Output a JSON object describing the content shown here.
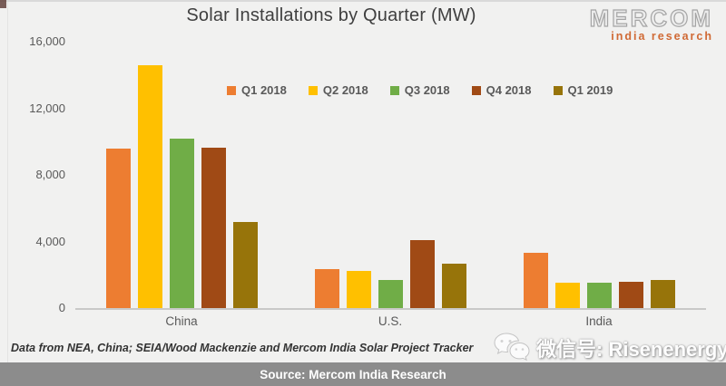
{
  "title": "Solar Installations by Quarter (MW)",
  "logo": {
    "name": "MERCOM",
    "subtitle": "india research"
  },
  "chart_data": {
    "type": "bar",
    "title": "Solar Installations by Quarter (MW)",
    "categories": [
      "China",
      "U.S.",
      "India"
    ],
    "series": [
      {
        "name": "Q1 2018",
        "color": "#ED7D31",
        "values": [
          9650,
          2400,
          3350
        ]
      },
      {
        "name": "Q2 2018",
        "color": "#FFC000",
        "values": [
          14650,
          2300,
          1600
        ]
      },
      {
        "name": "Q3 2018",
        "color": "#70AD47",
        "values": [
          10250,
          1750,
          1600
        ]
      },
      {
        "name": "Q4 2018",
        "color": "#A04A15",
        "values": [
          9700,
          4150,
          1650
        ]
      },
      {
        "name": "Q1 2019",
        "color": "#97740A",
        "values": [
          5200,
          2700,
          1750
        ]
      }
    ],
    "xlabel": "",
    "ylabel": "",
    "ylim": [
      0,
      16000
    ],
    "yticks": [
      16000,
      12000,
      8000,
      4000,
      0
    ],
    "ytick_labels": [
      "16,000",
      "12,000",
      "8,000",
      "4,000",
      "0"
    ],
    "grid": false,
    "legend_position": "top-center"
  },
  "footnote": "Data from NEA, China; SEIA/Wood Mackenzie and Mercom India Solar Project Tracker",
  "footer": {
    "source_label": "Source: Mercom India Research",
    "bg": "#8C8C8C"
  },
  "watermark": {
    "icon": "wechat-icon",
    "label": "微信号: Risenenergy"
  }
}
